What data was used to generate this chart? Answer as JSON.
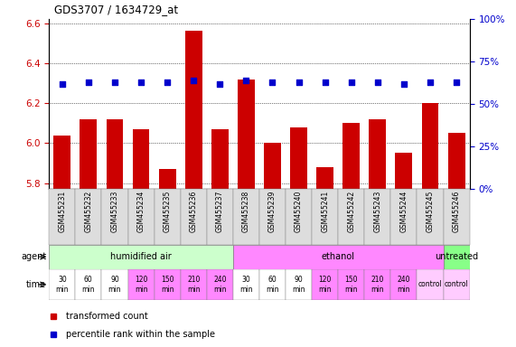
{
  "title": "GDS3707 / 1634729_at",
  "samples": [
    "GSM455231",
    "GSM455232",
    "GSM455233",
    "GSM455234",
    "GSM455235",
    "GSM455236",
    "GSM455237",
    "GSM455238",
    "GSM455239",
    "GSM455240",
    "GSM455241",
    "GSM455242",
    "GSM455243",
    "GSM455244",
    "GSM455245",
    "GSM455246"
  ],
  "red_values": [
    6.04,
    6.12,
    6.12,
    6.07,
    5.87,
    6.56,
    6.07,
    6.32,
    6.0,
    6.08,
    5.88,
    6.1,
    6.12,
    5.95,
    6.2,
    6.05
  ],
  "blue_values": [
    62,
    63,
    63,
    63,
    63,
    64,
    62,
    64,
    63,
    63,
    63,
    63,
    63,
    62,
    63,
    63
  ],
  "ylim_left": [
    5.77,
    6.62
  ],
  "ylim_right": [
    0,
    100
  ],
  "yticks_left": [
    5.8,
    6.0,
    6.2,
    6.4,
    6.6
  ],
  "yticks_right": [
    0,
    25,
    50,
    75,
    100
  ],
  "red_color": "#cc0000",
  "blue_color": "#0000cc",
  "agent_groups": [
    {
      "label": "humidified air",
      "start": 0,
      "end": 7,
      "color": "#ccffcc"
    },
    {
      "label": "ethanol",
      "start": 7,
      "end": 15,
      "color": "#ff88ff"
    },
    {
      "label": "untreated",
      "start": 15,
      "end": 16,
      "color": "#88ff88"
    }
  ],
  "time_colors_white": "white",
  "time_colors_pink": "#ff88ff",
  "time_colors_lightpink": "#ffccff",
  "legend_red": "transformed count",
  "legend_blue": "percentile rank within the sample"
}
